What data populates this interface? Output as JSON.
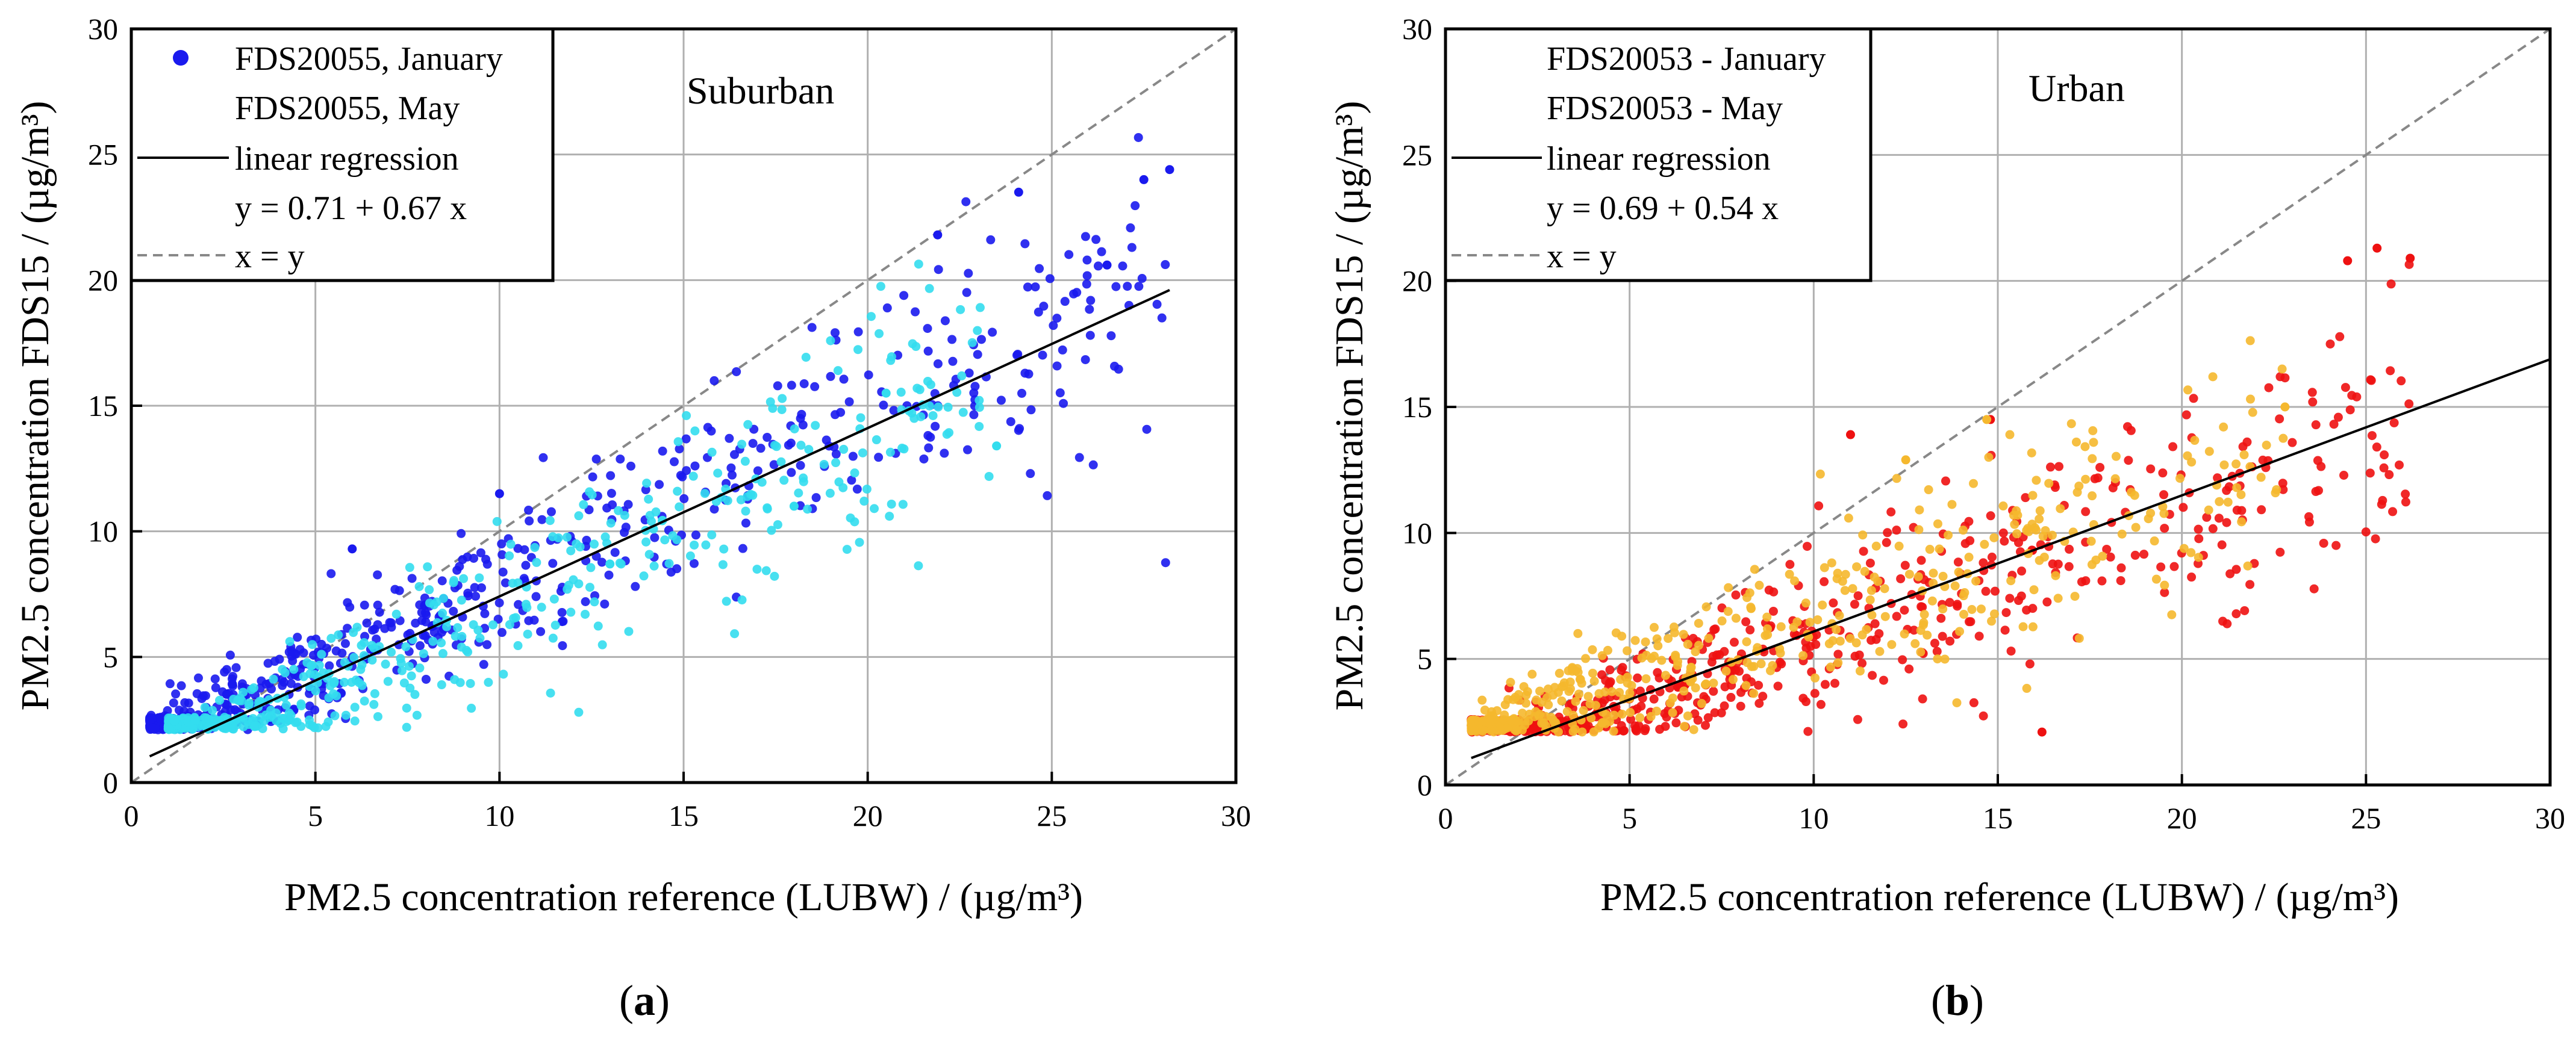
{
  "chart_data": [
    {
      "panel": "a",
      "type": "scatter",
      "caption": [
        "(",
        "a",
        ")"
      ],
      "annotation": "Suburban",
      "xlabel": "PM2.5 concentration reference (LUBW) / (µg/m³)",
      "ylabel": "PM2.5 concentration FDS15 / (µg/m³)",
      "xlim": [
        0,
        30
      ],
      "ylim": [
        0,
        30
      ],
      "xticks": [
        0,
        5,
        10,
        15,
        20,
        25,
        30
      ],
      "yticks": [
        0,
        5,
        10,
        15,
        20,
        25,
        30
      ],
      "grid": true,
      "legend_position": "top-left",
      "legend": {
        "series1": "FDS20055, January",
        "series2": "FDS20055, May",
        "regression": "linear regression",
        "equation": "y = 0.71 + 0.67 x",
        "identity": "x = y"
      },
      "regression": {
        "intercept": 0.71,
        "slope": 0.67,
        "x_range": [
          0.5,
          28.2
        ]
      },
      "identity_range": [
        0,
        30
      ],
      "series": [
        {
          "name": "FDS20055, January",
          "color": "#1a1aee",
          "n": 650,
          "x_range": [
            0.5,
            28.2
          ],
          "notable_points": [
            [
              28.2,
              24.4
            ],
            [
              27.5,
              24.0
            ],
            [
              26.5,
              20.6
            ],
            [
              24.1,
              23.5
            ],
            [
              21.9,
              21.8
            ],
            [
              10.0,
              11.5
            ],
            [
              6.0,
              9.3
            ]
          ]
        },
        {
          "name": "FDS20055, May",
          "color": "#33ddee",
          "n": 500,
          "x_range": [
            1.0,
            23.5
          ],
          "notable_points": [
            [
              23.5,
              13.4
            ],
            [
              20.5,
              15.5
            ],
            [
              18.0,
              11.0
            ],
            [
              13.0,
              8.7
            ]
          ]
        }
      ]
    },
    {
      "panel": "b",
      "type": "scatter",
      "caption": [
        "(",
        "b",
        ")"
      ],
      "annotation": "Urban",
      "xlabel": "PM2.5 concentration reference (LUBW) / (µg/m³)",
      "ylabel": "PM2.5 concentration FDS15 / (µg/m³)",
      "xlim": [
        0,
        30
      ],
      "ylim": [
        0,
        30
      ],
      "xticks": [
        0,
        5,
        10,
        15,
        20,
        25,
        30
      ],
      "yticks": [
        0,
        5,
        10,
        15,
        20,
        25,
        30
      ],
      "grid": true,
      "legend_position": "top-left",
      "legend": {
        "series1": "FDS20053 - January",
        "series2": "FDS20053 - May",
        "regression": "linear regression",
        "equation": "y = 0.69 + 0.54 x",
        "identity": "x = y"
      },
      "regression": {
        "intercept": 0.69,
        "slope": 0.54,
        "x_range": [
          0.7,
          30
        ]
      },
      "identity_range": [
        0,
        30
      ],
      "series": [
        {
          "name": "FDS20053 - January",
          "color": "#ee1111",
          "n": 650,
          "x_range": [
            0.7,
            26.2
          ],
          "notable_points": [
            [
              25.3,
              21.3
            ],
            [
              26.2,
              20.9
            ],
            [
              24.5,
              20.8
            ],
            [
              11.0,
              13.9
            ],
            [
              14.8,
              14.5
            ],
            [
              16.2,
              2.1
            ]
          ]
        },
        {
          "name": "FDS20053 - May",
          "color": "#f5b82e",
          "n": 500,
          "x_range": [
            0.7,
            22.8
          ],
          "notable_points": [
            [
              14.7,
              14.5
            ],
            [
              12.5,
              12.9
            ],
            [
              22.8,
              15.0
            ],
            [
              8.3,
              7.0
            ]
          ]
        }
      ]
    }
  ]
}
